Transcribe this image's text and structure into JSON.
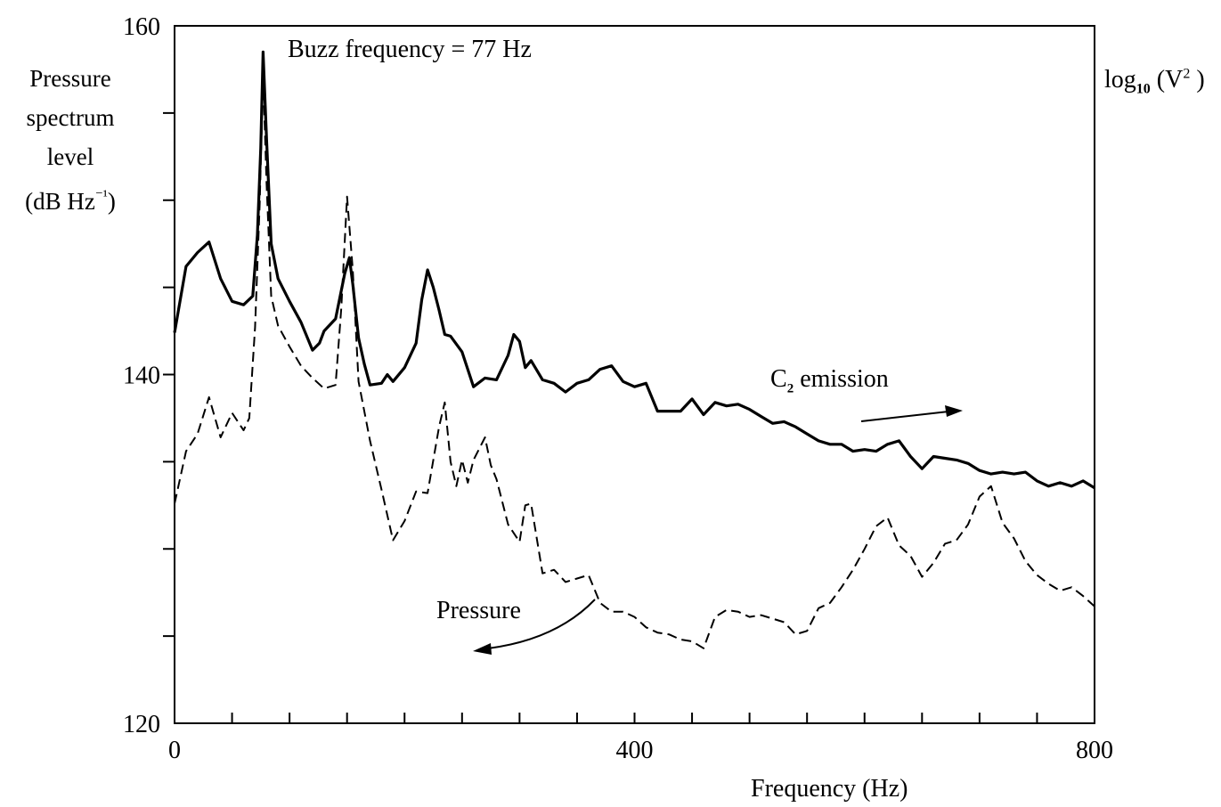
{
  "chart_data": {
    "type": "line",
    "ylabel_lines": [
      "Pressure",
      "spectrum",
      "level",
      "(dB Hz",
      "⁻¹",
      ")"
    ],
    "right_label": {
      "base": "log",
      "sub": "10",
      "open": " (V",
      "sup": "2",
      "close": " )"
    },
    "xlabel": "Frequency (Hz)",
    "xlim": [
      0,
      800
    ],
    "ylim": [
      120,
      160
    ],
    "xticks": [
      0,
      400,
      800
    ],
    "yticks": [
      120,
      140,
      160
    ],
    "annotations": {
      "buzz": "Buzz frequency = 77 Hz",
      "c2_main": "C",
      "c2_sub": "2",
      "c2_rest": " emission",
      "pressure": "Pressure"
    },
    "series": [
      {
        "name": "C2 emission",
        "style": "solid",
        "x": [
          0,
          10,
          20,
          30,
          40,
          50,
          60,
          68,
          72,
          75,
          77,
          80,
          84,
          90,
          100,
          110,
          120,
          126,
          130,
          140,
          148,
          152,
          155,
          160,
          165,
          170,
          180,
          185,
          190,
          200,
          210,
          215,
          220,
          225,
          230,
          235,
          240,
          250,
          260,
          270,
          280,
          290,
          295,
          300,
          305,
          310,
          320,
          330,
          340,
          350,
          360,
          370,
          380,
          390,
          400,
          410,
          420,
          430,
          440,
          450,
          460,
          470,
          480,
          490,
          500,
          510,
          520,
          530,
          540,
          550,
          560,
          570,
          580,
          590,
          600,
          610,
          620,
          630,
          640,
          650,
          660,
          670,
          680,
          690,
          700,
          710,
          720,
          730,
          740,
          750,
          760,
          770,
          780,
          790,
          800
        ],
        "y": [
          142.4,
          146.2,
          147.0,
          147.6,
          145.5,
          144.2,
          144.0,
          144.5,
          148.0,
          153.0,
          158.5,
          153.5,
          147.5,
          145.5,
          144.2,
          143.0,
          141.4,
          141.8,
          142.5,
          143.2,
          145.8,
          146.7,
          145.2,
          142.1,
          140.6,
          139.4,
          139.5,
          140.0,
          139.6,
          140.4,
          141.8,
          144.3,
          146.0,
          145.0,
          143.7,
          142.3,
          142.2,
          141.3,
          139.3,
          139.8,
          139.7,
          141.1,
          142.3,
          141.9,
          140.4,
          140.8,
          139.7,
          139.5,
          139.0,
          139.5,
          139.7,
          140.3,
          140.5,
          139.6,
          139.3,
          139.5,
          137.9,
          137.9,
          137.9,
          138.6,
          137.7,
          138.4,
          138.2,
          138.3,
          138.0,
          137.6,
          137.2,
          137.3,
          137.0,
          136.6,
          136.2,
          136.0,
          136.0,
          135.6,
          135.7,
          135.6,
          136.0,
          136.2,
          135.3,
          134.6,
          135.3,
          135.2,
          135.1,
          134.9,
          134.5,
          134.3,
          134.4,
          134.3,
          134.4,
          133.9,
          133.6,
          133.8,
          133.6,
          133.9,
          133.5
        ]
      },
      {
        "name": "Pressure",
        "style": "dashed",
        "x": [
          0,
          10,
          20,
          30,
          40,
          50,
          60,
          65,
          70,
          74,
          77,
          80,
          84,
          90,
          100,
          110,
          120,
          130,
          140,
          145,
          150,
          155,
          160,
          170,
          180,
          190,
          200,
          210,
          220,
          230,
          235,
          240,
          245,
          250,
          255,
          260,
          270,
          275,
          280,
          290,
          300,
          305,
          310,
          320,
          330,
          340,
          350,
          360,
          370,
          380,
          390,
          400,
          410,
          420,
          430,
          440,
          450,
          460,
          470,
          480,
          490,
          500,
          510,
          520,
          530,
          540,
          550,
          560,
          570,
          580,
          590,
          600,
          610,
          620,
          630,
          640,
          650,
          660,
          670,
          680,
          690,
          700,
          710,
          720,
          730,
          740,
          750,
          760,
          770,
          780,
          790,
          800
        ],
        "y": [
          132.6,
          135.6,
          136.6,
          138.7,
          136.4,
          137.8,
          136.8,
          137.5,
          142.7,
          149.8,
          157.2,
          151.0,
          144.5,
          142.8,
          141.6,
          140.5,
          139.8,
          139.2,
          139.4,
          143.8,
          150.2,
          146.0,
          139.6,
          136.2,
          133.4,
          130.5,
          131.6,
          133.3,
          133.2,
          137.0,
          138.4,
          135.0,
          133.6,
          135.1,
          133.8,
          135.1,
          136.4,
          134.8,
          134.0,
          131.4,
          130.4,
          132.5,
          132.6,
          128.6,
          128.8,
          128.1,
          128.3,
          128.5,
          126.9,
          126.4,
          126.4,
          126.1,
          125.5,
          125.2,
          125.1,
          124.8,
          124.7,
          124.3,
          126.1,
          126.5,
          126.4,
          126.1,
          126.2,
          126.0,
          125.8,
          125.1,
          125.3,
          126.6,
          126.9,
          127.8,
          128.8,
          130.0,
          131.3,
          131.8,
          130.2,
          129.6,
          128.4,
          129.2,
          130.3,
          130.5,
          131.4,
          133.0,
          133.6,
          131.5,
          130.6,
          129.3,
          128.5,
          128.0,
          127.6,
          127.8,
          127.3,
          126.7
        ]
      }
    ]
  }
}
